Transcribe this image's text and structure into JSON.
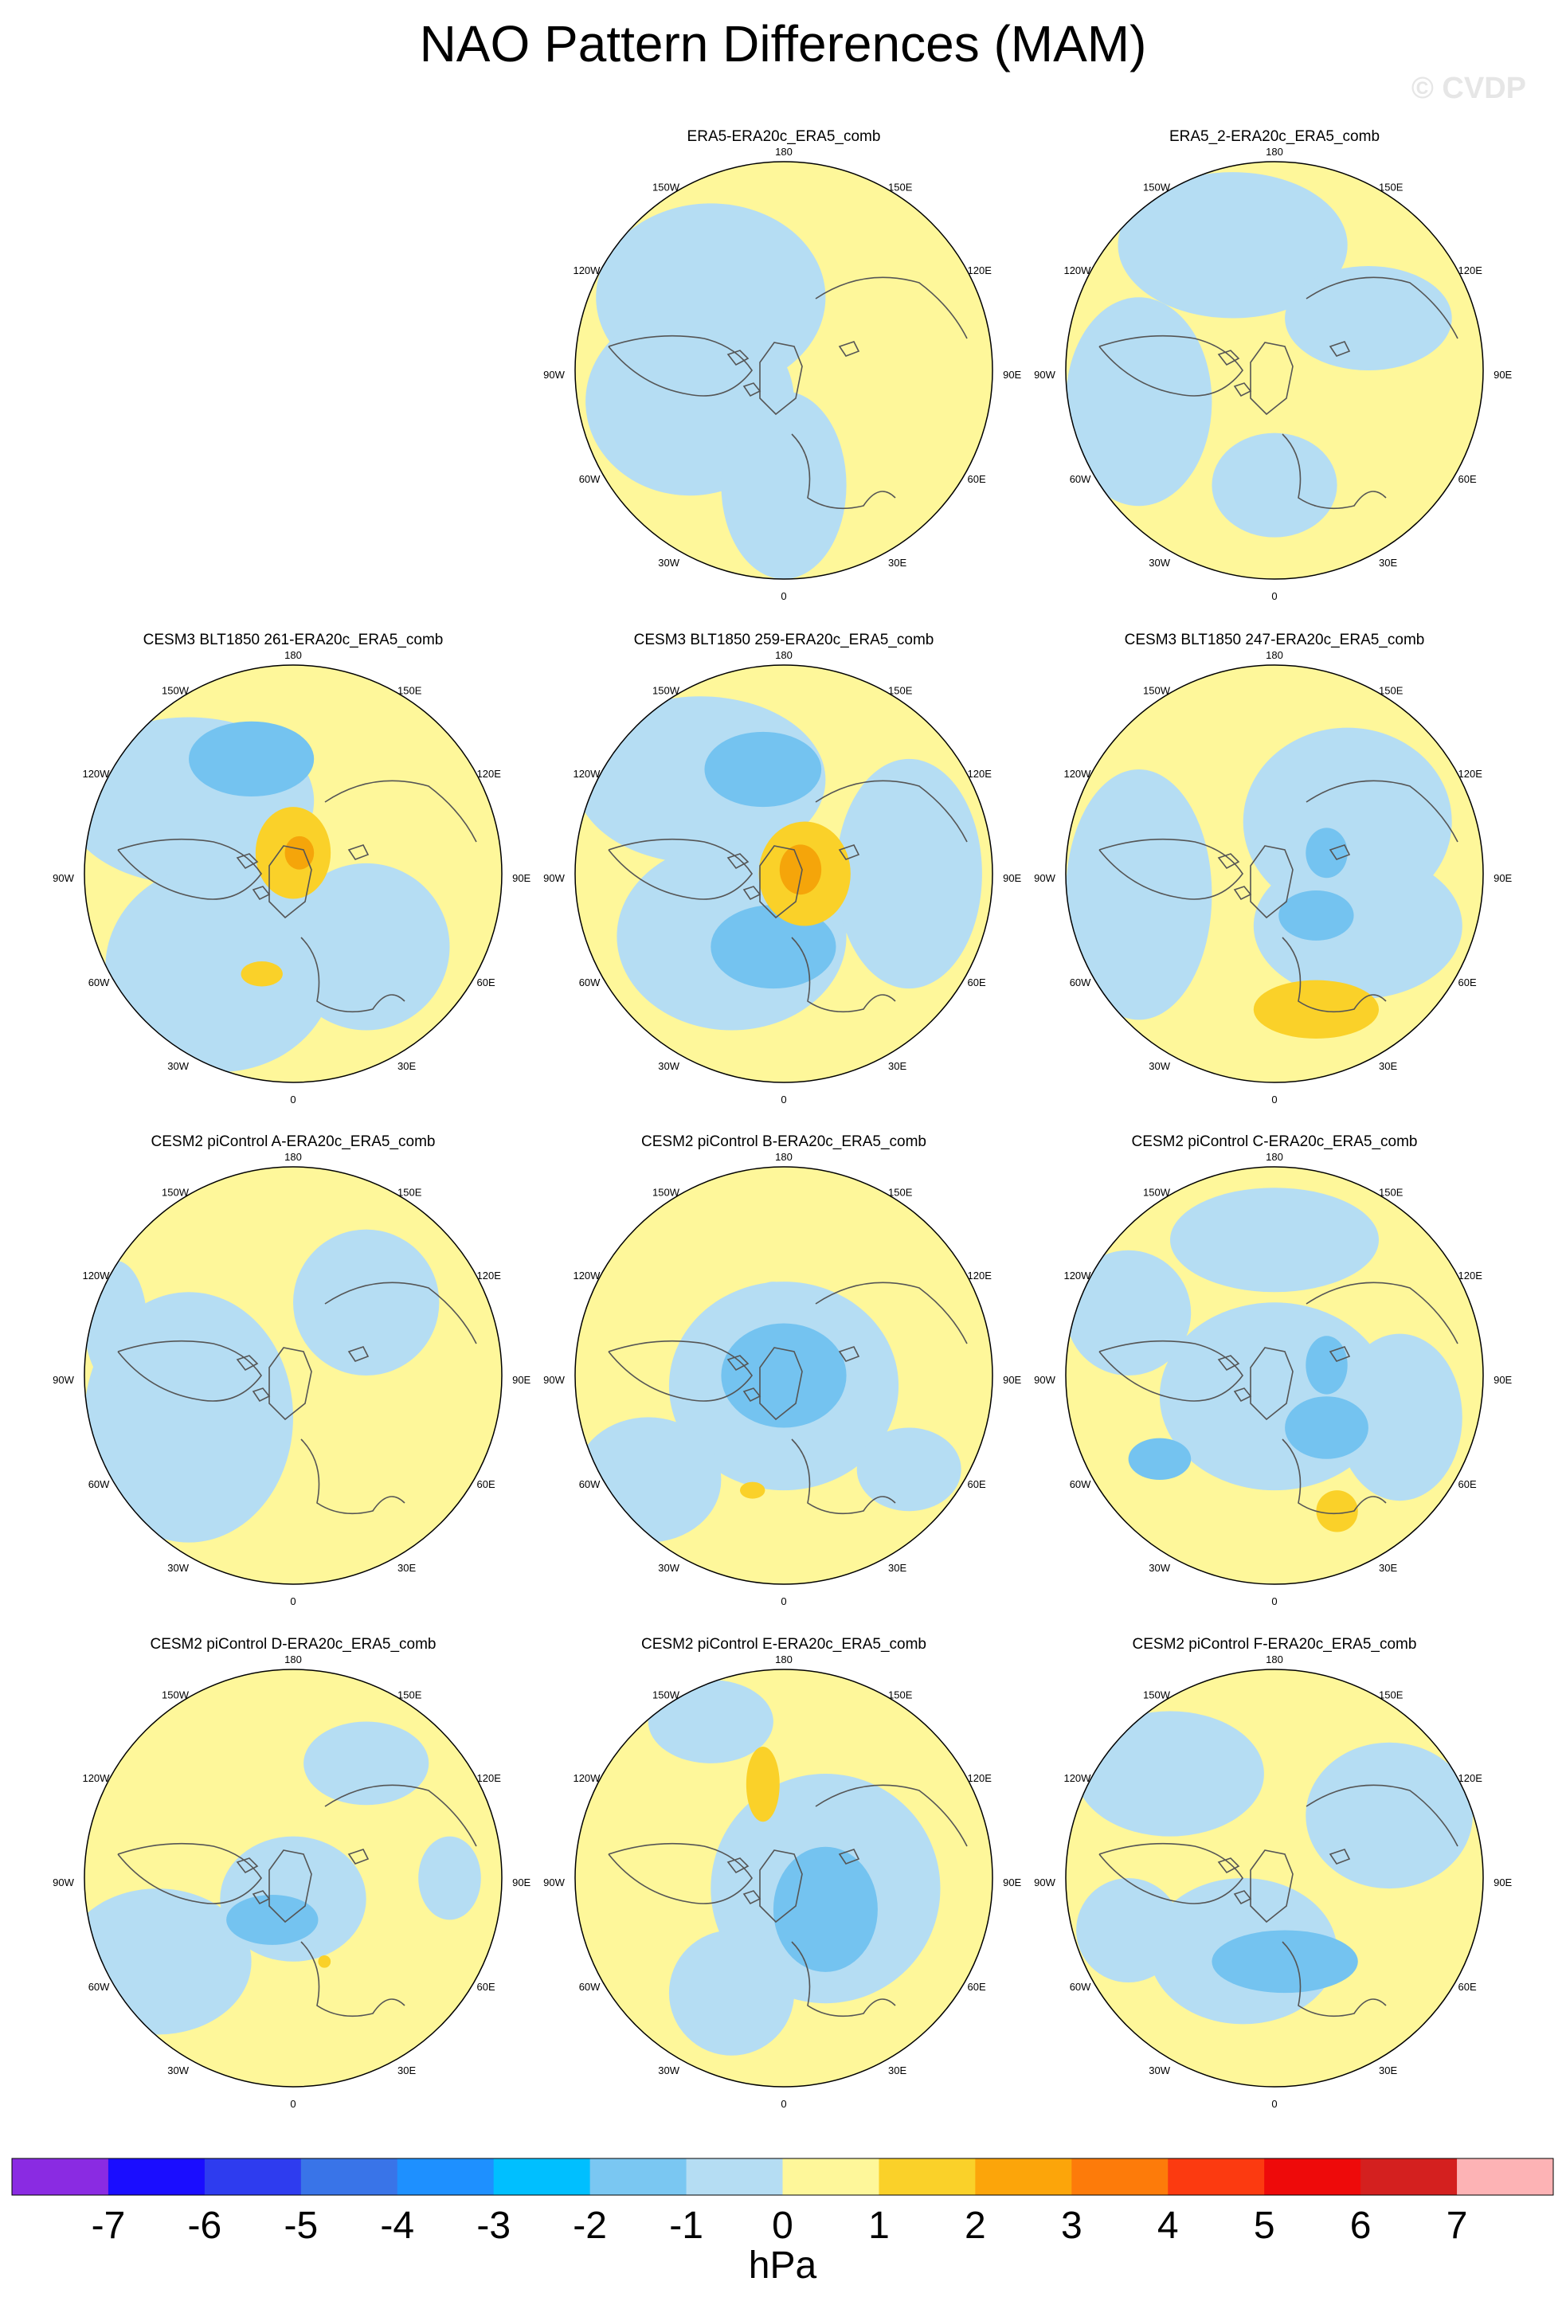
{
  "title": "NAO Pattern Differences (MAM)",
  "watermark": "© CVDP",
  "colors": {
    "ocean_neg": "#b5ddf3",
    "land_pos": "#fef79a",
    "neg2": "#74c3f0",
    "neg3": "#5aaeed",
    "pos2": "#fad129",
    "pos3": "#f5a50a",
    "coast": "#555555"
  },
  "grid_labels": {
    "top": "180",
    "bottom": "0",
    "left": "90W",
    "right": "90E",
    "upper_left": "150W",
    "upper_right": "150E",
    "mid_upper_left": "120W",
    "mid_upper_right": "120E",
    "mid_lower_left": "60W",
    "mid_lower_right": "60E",
    "lower_left": "30W",
    "lower_right": "30E"
  },
  "panels": [
    {
      "title": "ERA5-ERA20c_ERA5_comb",
      "variant": 0
    },
    {
      "title": "ERA5_2-ERA20c_ERA5_comb",
      "variant": 1
    },
    {
      "title": "CESM3 BLT1850 261-ERA20c_ERA5_comb",
      "variant": 2
    },
    {
      "title": "CESM3 BLT1850 259-ERA20c_ERA5_comb",
      "variant": 3
    },
    {
      "title": "CESM3 BLT1850 247-ERA20c_ERA5_comb",
      "variant": 4
    },
    {
      "title": "CESM2 piControl A-ERA20c_ERA5_comb",
      "variant": 5
    },
    {
      "title": "CESM2 piControl B-ERA20c_ERA5_comb",
      "variant": 6
    },
    {
      "title": "CESM2 piControl C-ERA20c_ERA5_comb",
      "variant": 7
    },
    {
      "title": "CESM2 piControl D-ERA20c_ERA5_comb",
      "variant": 8
    },
    {
      "title": "CESM2 piControl E-ERA20c_ERA5_comb",
      "variant": 9
    },
    {
      "title": "CESM2 piControl F-ERA20c_ERA5_comb",
      "variant": 10
    }
  ],
  "colorbar": {
    "unit": "hPa",
    "labels": [
      "-7",
      "-6",
      "-5",
      "-4",
      "-3",
      "-2",
      "-1",
      "0",
      "1",
      "2",
      "3",
      "4",
      "5",
      "6",
      "7"
    ],
    "colors": [
      "#8a2be2",
      "#1a0dff",
      "#2e3cef",
      "#3974e8",
      "#1e90ff",
      "#00bfff",
      "#7ac7f2",
      "#b5ddf3",
      "#fef79a",
      "#fad129",
      "#fca50a",
      "#fd7b0a",
      "#fc3a10",
      "#ee0a0a",
      "#d4201f",
      "#fdb3b5"
    ]
  }
}
